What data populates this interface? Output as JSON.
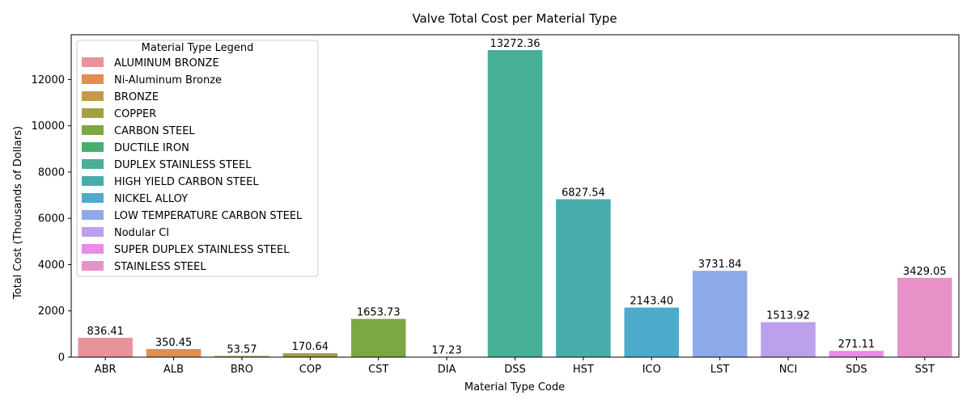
{
  "chart_data": {
    "type": "bar",
    "title": "Valve Total Cost per Material Type",
    "xlabel": "Material Type Code",
    "ylabel": "Total Cost (Thousands of Dollars)",
    "ylim": [
      0,
      13936.48
    ],
    "yticks": [
      0,
      2000,
      4000,
      6000,
      8000,
      10000,
      12000
    ],
    "categories": [
      "ABR",
      "ALB",
      "BRO",
      "COP",
      "CST",
      "DIA",
      "DSS",
      "HST",
      "ICO",
      "LST",
      "NCI",
      "SDS",
      "SST"
    ],
    "values": [
      836.41,
      350.45,
      53.57,
      170.64,
      1653.73,
      17.23,
      13272.36,
      6827.54,
      2143.4,
      3731.84,
      1513.92,
      271.11,
      3429.05
    ],
    "value_labels": [
      "836.41",
      "350.45",
      "53.57",
      "170.64",
      "1653.73",
      "17.23",
      "13272.36",
      "6827.54",
      "2143.40",
      "3731.84",
      "1513.92",
      "271.11",
      "3429.05"
    ],
    "colors": [
      "#e8939c",
      "#e38d52",
      "#c39a4a",
      "#a3a042",
      "#7aa843",
      "#45b06c",
      "#47b097",
      "#48adaa",
      "#4cabcc",
      "#8daae8",
      "#bda0ec",
      "#e88be9",
      "#e891c9"
    ],
    "legend": {
      "title": "Material Type Legend",
      "position": "top-left",
      "entries": [
        "ALUMINUM BRONZE",
        "Ni-Aluminum Bronze",
        "BRONZE",
        "COPPER",
        "CARBON STEEL",
        "DUCTILE IRON",
        "DUPLEX STAINLESS STEEL",
        "HIGH YIELD CARBON STEEL",
        "NICKEL ALLOY",
        "LOW TEMPERATURE CARBON STEEL",
        "Nodular CI",
        "SUPER DUPLEX STAINLESS STEEL",
        "STAINLESS STEEL"
      ]
    },
    "grid": false
  }
}
